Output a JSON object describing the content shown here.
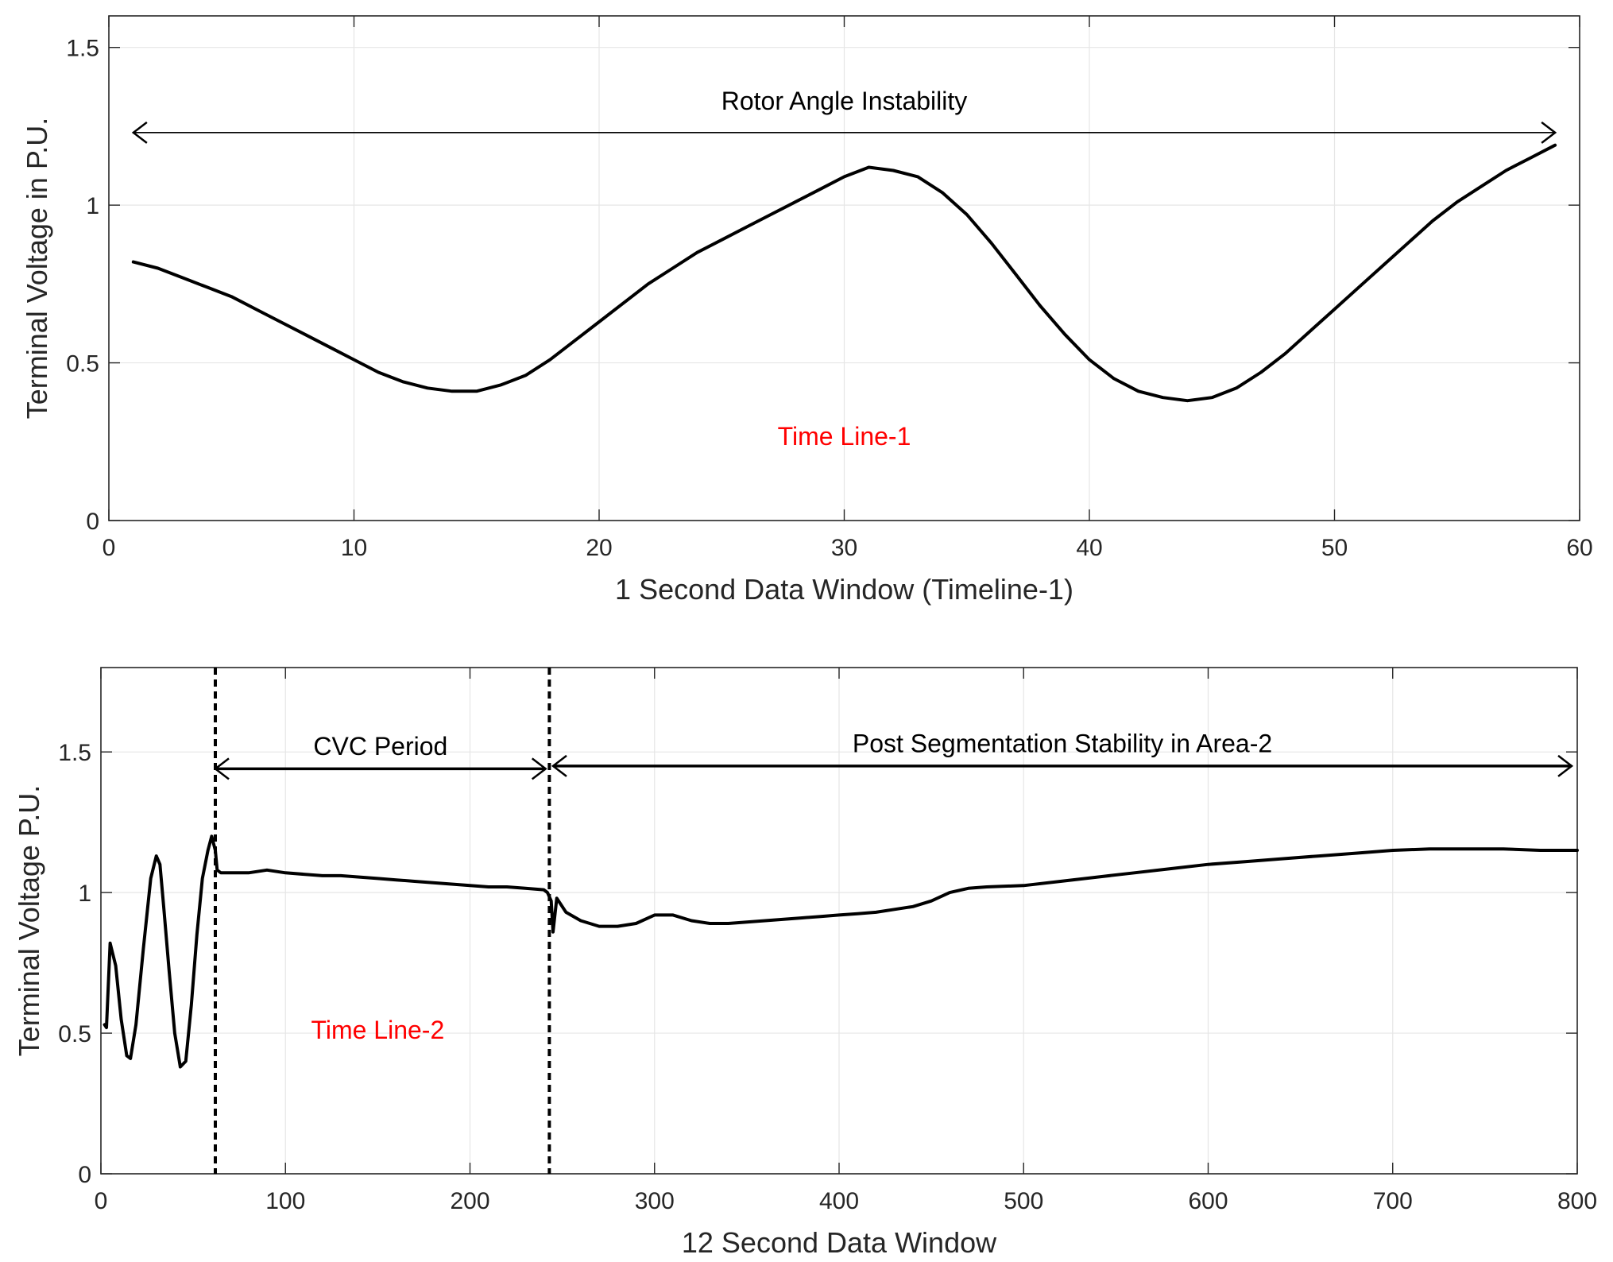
{
  "chart_data": [
    {
      "type": "line",
      "xlabel": "1 Second Data Window (Timeline-1)",
      "ylabel": "Terminal Voltage in P.U.",
      "xlim": [
        0,
        60
      ],
      "ylim": [
        0,
        1.6
      ],
      "xticks": [
        0,
        10,
        20,
        30,
        40,
        50,
        60
      ],
      "yticks": [
        0,
        0.5,
        1,
        1.5
      ],
      "xtick_labels": [
        "0",
        "10",
        "20",
        "30",
        "40",
        "50",
        "60"
      ],
      "ytick_labels": [
        "0",
        "0.5",
        "1",
        "1.5"
      ],
      "grid": true,
      "series": [
        {
          "name": "Terminal Voltage",
          "color": "#000000",
          "x": [
            1,
            2,
            3,
            4,
            5,
            6,
            7,
            8,
            9,
            10,
            11,
            12,
            13,
            14,
            15,
            16,
            17,
            18,
            19,
            20,
            21,
            22,
            23,
            24,
            25,
            26,
            27,
            28,
            29,
            30,
            31,
            32,
            33,
            34,
            35,
            36,
            37,
            38,
            39,
            40,
            41,
            42,
            43,
            44,
            45,
            46,
            47,
            48,
            49,
            50,
            51,
            52,
            53,
            54,
            55,
            56,
            57,
            58,
            59
          ],
          "values": [
            0.82,
            0.8,
            0.77,
            0.74,
            0.71,
            0.67,
            0.63,
            0.59,
            0.55,
            0.51,
            0.47,
            0.44,
            0.42,
            0.41,
            0.41,
            0.43,
            0.46,
            0.51,
            0.57,
            0.63,
            0.69,
            0.75,
            0.8,
            0.85,
            0.89,
            0.93,
            0.97,
            1.01,
            1.05,
            1.09,
            1.12,
            1.11,
            1.09,
            1.04,
            0.97,
            0.88,
            0.78,
            0.68,
            0.59,
            0.51,
            0.45,
            0.41,
            0.39,
            0.38,
            0.39,
            0.42,
            0.47,
            0.53,
            0.6,
            0.67,
            0.74,
            0.81,
            0.88,
            0.95,
            1.01,
            1.06,
            1.11,
            1.15,
            1.19
          ]
        }
      ],
      "annotations": [
        {
          "text": "Rotor Angle Instability",
          "type": "double-arrow",
          "x_from": 1,
          "x_to": 59,
          "y": 1.23,
          "text_y": 1.33,
          "color": "#000000"
        },
        {
          "text": "Time Line-1",
          "type": "label",
          "x": 30,
          "y": 0.24,
          "color": "#ff0000"
        }
      ]
    },
    {
      "type": "line",
      "xlabel": "12 Second Data Window",
      "ylabel": "Terminal Voltage P.U.",
      "xlim": [
        0,
        800
      ],
      "ylim": [
        0,
        1.8
      ],
      "xticks": [
        0,
        100,
        200,
        300,
        400,
        500,
        600,
        700,
        800
      ],
      "yticks": [
        0,
        0.5,
        1,
        1.5
      ],
      "xtick_labels": [
        "0",
        "100",
        "200",
        "300",
        "400",
        "500",
        "600",
        "700",
        "800"
      ],
      "ytick_labels": [
        "0",
        "0.5",
        "1",
        "1.5"
      ],
      "grid": true,
      "series": [
        {
          "name": "Terminal Voltage",
          "color": "#000000",
          "x": [
            2,
            3,
            5,
            8,
            11,
            14,
            16,
            19,
            23,
            27,
            30,
            32,
            34,
            37,
            40,
            43,
            46,
            49,
            52,
            55,
            58,
            60,
            62,
            63,
            65,
            70,
            80,
            90,
            100,
            110,
            120,
            130,
            140,
            150,
            160,
            170,
            180,
            190,
            200,
            210,
            220,
            230,
            240,
            242,
            244,
            245,
            247,
            252,
            260,
            270,
            280,
            290,
            300,
            310,
            320,
            330,
            340,
            350,
            360,
            370,
            380,
            390,
            400,
            410,
            420,
            430,
            440,
            450,
            460,
            470,
            480,
            500,
            520,
            540,
            560,
            580,
            600,
            620,
            640,
            660,
            680,
            700,
            720,
            740,
            760,
            780,
            800
          ],
          "values": [
            0.53,
            0.52,
            0.82,
            0.74,
            0.55,
            0.42,
            0.41,
            0.53,
            0.8,
            1.05,
            1.13,
            1.1,
            0.95,
            0.72,
            0.5,
            0.38,
            0.4,
            0.6,
            0.85,
            1.05,
            1.15,
            1.2,
            1.15,
            1.08,
            1.07,
            1.07,
            1.07,
            1.08,
            1.07,
            1.065,
            1.06,
            1.06,
            1.055,
            1.05,
            1.045,
            1.04,
            1.035,
            1.03,
            1.025,
            1.02,
            1.02,
            1.015,
            1.01,
            1.0,
            0.97,
            0.86,
            0.98,
            0.93,
            0.9,
            0.88,
            0.88,
            0.89,
            0.92,
            0.92,
            0.9,
            0.89,
            0.89,
            0.895,
            0.9,
            0.905,
            0.91,
            0.915,
            0.92,
            0.925,
            0.93,
            0.94,
            0.95,
            0.97,
            1.0,
            1.015,
            1.02,
            1.025,
            1.04,
            1.055,
            1.07,
            1.085,
            1.1,
            1.11,
            1.12,
            1.13,
            1.14,
            1.15,
            1.155,
            1.155,
            1.155,
            1.15,
            1.15
          ]
        }
      ],
      "vlines": [
        62,
        243
      ],
      "annotations": [
        {
          "text": "CVC Period",
          "type": "double-arrow",
          "x_from": 62,
          "x_to": 241,
          "y": 1.44,
          "text_y": 1.52,
          "color": "#000000"
        },
        {
          "text": "Post Segmentation Stability in Area-2",
          "type": "double-arrow",
          "x_from": 245,
          "x_to": 797,
          "y": 1.45,
          "text_y": 1.53,
          "color": "#000000"
        },
        {
          "text": "Time Line-2",
          "type": "label",
          "x": 150,
          "y": 0.48,
          "color": "#ff0000"
        }
      ]
    }
  ]
}
